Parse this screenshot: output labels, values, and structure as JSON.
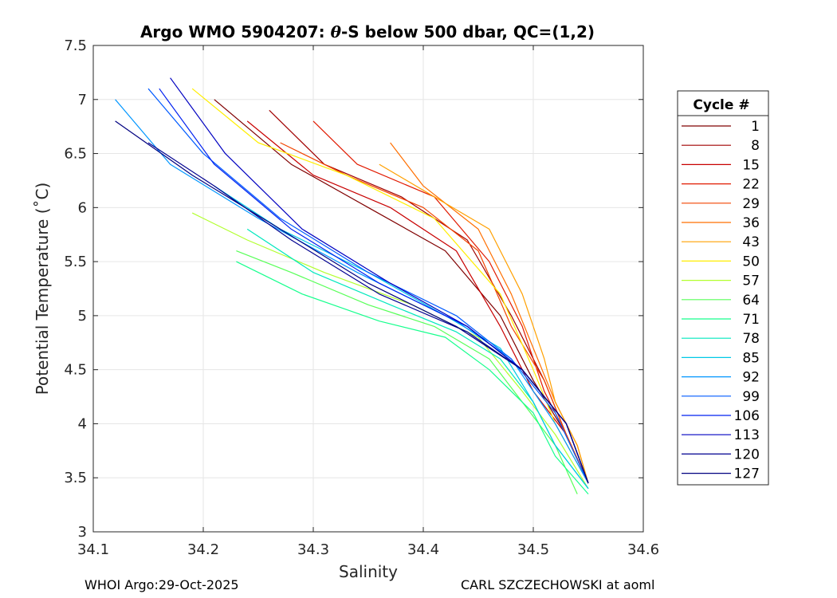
{
  "chart_data": {
    "type": "line",
    "title": "Argo WMO 5904207: θ-S below 500 dbar,  QC=(1,2)",
    "title_prefix": "Argo WMO 5904207: ",
    "title_theta": "θ",
    "title_suffix": "-S below 500 dbar,  QC=(1,2)",
    "xlabel": "Salinity",
    "ylabel": "Potential Temperature (˚C)",
    "xlim": [
      34.1,
      34.6
    ],
    "ylim": [
      3,
      7.5
    ],
    "x_ticks": [
      34.1,
      34.2,
      34.3,
      34.4,
      34.5,
      34.6
    ],
    "x_tick_labels": [
      "34.1",
      "34.2",
      "34.3",
      "34.4",
      "34.5",
      "34.6"
    ],
    "y_ticks": [
      3,
      3.5,
      4,
      4.5,
      5,
      5.5,
      6,
      6.5,
      7,
      7.5
    ],
    "y_tick_labels": [
      "3",
      "3.5",
      "4",
      "4.5",
      "5",
      "5.5",
      "6",
      "6.5",
      "7",
      "7.5"
    ],
    "grid": true,
    "legend_title": "Cycle #",
    "legend_position": "outside-right",
    "series": [
      {
        "name": "1",
        "color": "#800000",
        "x": [
          34.21,
          34.28,
          34.35,
          34.42,
          34.47,
          34.5,
          34.53,
          34.55
        ],
        "y": [
          7.0,
          6.4,
          6.0,
          5.6,
          5.0,
          4.4,
          3.9,
          3.45
        ]
      },
      {
        "name": "8",
        "color": "#a00000",
        "x": [
          34.26,
          34.31,
          34.38,
          34.44,
          34.48,
          34.51,
          34.53,
          34.55
        ],
        "y": [
          6.9,
          6.4,
          6.1,
          5.7,
          5.0,
          4.4,
          3.9,
          3.45
        ]
      },
      {
        "name": "15",
        "color": "#c80000",
        "x": [
          34.24,
          34.3,
          34.37,
          34.43,
          34.47,
          34.5,
          34.53,
          34.55
        ],
        "y": [
          6.8,
          6.3,
          6.0,
          5.6,
          4.9,
          4.3,
          3.9,
          3.45
        ]
      },
      {
        "name": "22",
        "color": "#e11a00",
        "x": [
          34.3,
          34.34,
          34.41,
          34.46,
          34.49,
          34.51,
          34.53,
          34.55
        ],
        "y": [
          6.8,
          6.4,
          6.1,
          5.5,
          4.9,
          4.3,
          3.9,
          3.45
        ]
      },
      {
        "name": "29",
        "color": "#f24400",
        "x": [
          34.27,
          34.33,
          34.4,
          34.45,
          34.48,
          34.51,
          34.53,
          34.55
        ],
        "y": [
          6.6,
          6.3,
          6.0,
          5.6,
          4.9,
          4.4,
          3.9,
          3.45
        ]
      },
      {
        "name": "36",
        "color": "#ff6f00",
        "x": [
          34.37,
          34.4,
          34.45,
          34.48,
          34.5,
          34.52,
          34.54,
          34.55
        ],
        "y": [
          6.6,
          6.2,
          5.8,
          5.2,
          4.7,
          4.2,
          3.8,
          3.45
        ]
      },
      {
        "name": "43",
        "color": "#ffa000",
        "x": [
          34.36,
          34.41,
          34.46,
          34.49,
          34.51,
          34.52,
          34.54,
          34.55
        ],
        "y": [
          6.4,
          6.1,
          5.8,
          5.2,
          4.6,
          4.2,
          3.8,
          3.45
        ]
      },
      {
        "name": "50",
        "color": "#ffee00",
        "x": [
          34.19,
          34.25,
          34.33,
          34.41,
          34.47,
          34.5,
          34.52,
          34.55
        ],
        "y": [
          7.1,
          6.6,
          6.3,
          5.9,
          5.2,
          4.5,
          4.0,
          3.45
        ]
      },
      {
        "name": "57",
        "color": "#b2ff2e",
        "x": [
          34.19,
          34.24,
          34.31,
          34.39,
          34.45,
          34.49,
          34.52,
          34.55
        ],
        "y": [
          5.95,
          5.7,
          5.4,
          5.1,
          4.8,
          4.3,
          3.9,
          3.4
        ]
      },
      {
        "name": "64",
        "color": "#58ff58",
        "x": [
          34.23,
          34.28,
          34.35,
          34.41,
          34.46,
          34.49,
          34.52,
          34.54
        ],
        "y": [
          5.6,
          5.4,
          5.1,
          4.9,
          4.6,
          4.2,
          3.8,
          3.35
        ]
      },
      {
        "name": "71",
        "color": "#16ff8d",
        "x": [
          34.23,
          34.29,
          34.36,
          34.42,
          34.46,
          34.5,
          34.52,
          34.55
        ],
        "y": [
          5.5,
          5.2,
          4.95,
          4.8,
          4.5,
          4.1,
          3.7,
          3.35
        ]
      },
      {
        "name": "78",
        "color": "#00e8be",
        "x": [
          34.24,
          34.3,
          34.37,
          34.43,
          34.47,
          34.5,
          34.52,
          34.55
        ],
        "y": [
          5.8,
          5.4,
          5.1,
          4.85,
          4.6,
          4.2,
          3.8,
          3.4
        ]
      },
      {
        "name": "85",
        "color": "#00c8e6",
        "x": [
          34.21,
          34.27,
          34.35,
          34.42,
          34.47,
          34.5,
          34.52,
          34.55
        ],
        "y": [
          6.2,
          5.8,
          5.4,
          5.0,
          4.7,
          4.2,
          3.8,
          3.4
        ]
      },
      {
        "name": "92",
        "color": "#0096ff",
        "x": [
          34.12,
          34.17,
          34.25,
          34.34,
          34.43,
          34.48,
          34.52,
          34.55
        ],
        "y": [
          7.0,
          6.4,
          5.9,
          5.4,
          4.95,
          4.6,
          4.0,
          3.45
        ]
      },
      {
        "name": "99",
        "color": "#005aff",
        "x": [
          34.15,
          34.2,
          34.27,
          34.35,
          34.43,
          34.48,
          34.52,
          34.55
        ],
        "y": [
          7.1,
          6.5,
          5.9,
          5.4,
          5.0,
          4.6,
          4.1,
          3.45
        ]
      },
      {
        "name": "106",
        "color": "#0020f0",
        "x": [
          34.16,
          34.21,
          34.28,
          34.36,
          34.44,
          34.49,
          34.53,
          34.55
        ],
        "y": [
          7.1,
          6.4,
          5.8,
          5.3,
          4.9,
          4.5,
          4.0,
          3.45
        ]
      },
      {
        "name": "113",
        "color": "#0000c0",
        "x": [
          34.17,
          34.22,
          34.29,
          34.37,
          34.44,
          34.49,
          34.53,
          34.55
        ],
        "y": [
          7.2,
          6.5,
          5.8,
          5.3,
          4.9,
          4.5,
          4.0,
          3.45
        ]
      },
      {
        "name": "120",
        "color": "#000090",
        "x": [
          34.15,
          34.21,
          34.28,
          34.36,
          34.44,
          34.49,
          34.53,
          34.55
        ],
        "y": [
          6.6,
          6.2,
          5.7,
          5.2,
          4.85,
          4.5,
          4.0,
          3.45
        ]
      },
      {
        "name": "127",
        "color": "#000080",
        "x": [
          34.12,
          34.19,
          34.27,
          34.35,
          34.43,
          34.49,
          34.53,
          34.55
        ],
        "y": [
          6.8,
          6.3,
          5.8,
          5.3,
          4.9,
          4.5,
          4.0,
          3.45
        ]
      }
    ]
  },
  "footer": {
    "left": "WHOI Argo:29-Oct-2025",
    "right": "CARL SZCZECHOWSKI at aoml"
  }
}
